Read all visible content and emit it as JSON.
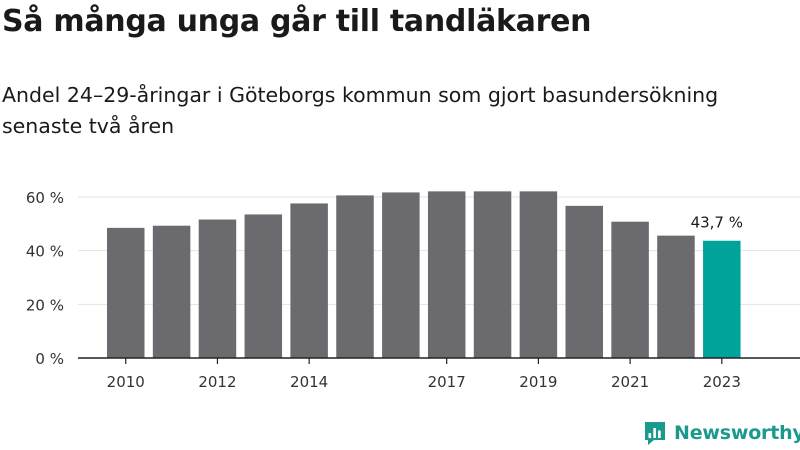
{
  "title": "Så många unga går till tandläkaren",
  "subtitle": "Andel 24–29-åringar i Göteborgs kommun som gjort basundersökning senaste två åren",
  "brand": {
    "name": "Newsworthy",
    "color": "#1a9a8d"
  },
  "chart_data": {
    "type": "bar",
    "title": "Så många unga går till tandläkaren",
    "subtitle": "Andel 24–29-åringar i Göteborgs kommun som gjort basundersökning senaste två åren",
    "categories": [
      "2010",
      "2011",
      "2012",
      "2013",
      "2014",
      "2015",
      "2016",
      "2017",
      "2018",
      "2019",
      "2020",
      "2021",
      "2022",
      "2023"
    ],
    "values": [
      48.5,
      49.3,
      51.6,
      53.5,
      57.6,
      60.6,
      61.7,
      62.1,
      62.1,
      62.1,
      56.7,
      50.8,
      45.6,
      43.7
    ],
    "unit": "%",
    "ylim": [
      0,
      65
    ],
    "yticks": [
      0,
      20,
      40,
      60
    ],
    "ytick_labels": [
      "0 %",
      "20 %",
      "40 %",
      "60 %"
    ],
    "xtick_labels": [
      "2010",
      "",
      "2012",
      "",
      "2014",
      "",
      "",
      "2017",
      "",
      "2019",
      "",
      "2021",
      "",
      "2023"
    ],
    "annotations": [
      {
        "category": "2023",
        "text": "43,7 %"
      }
    ],
    "colors": {
      "bar": "#6b6a6f",
      "highlight": "#00a39a",
      "axis": "#222222",
      "grid": "#e2e2e2"
    },
    "grid": true,
    "legend": "none"
  }
}
